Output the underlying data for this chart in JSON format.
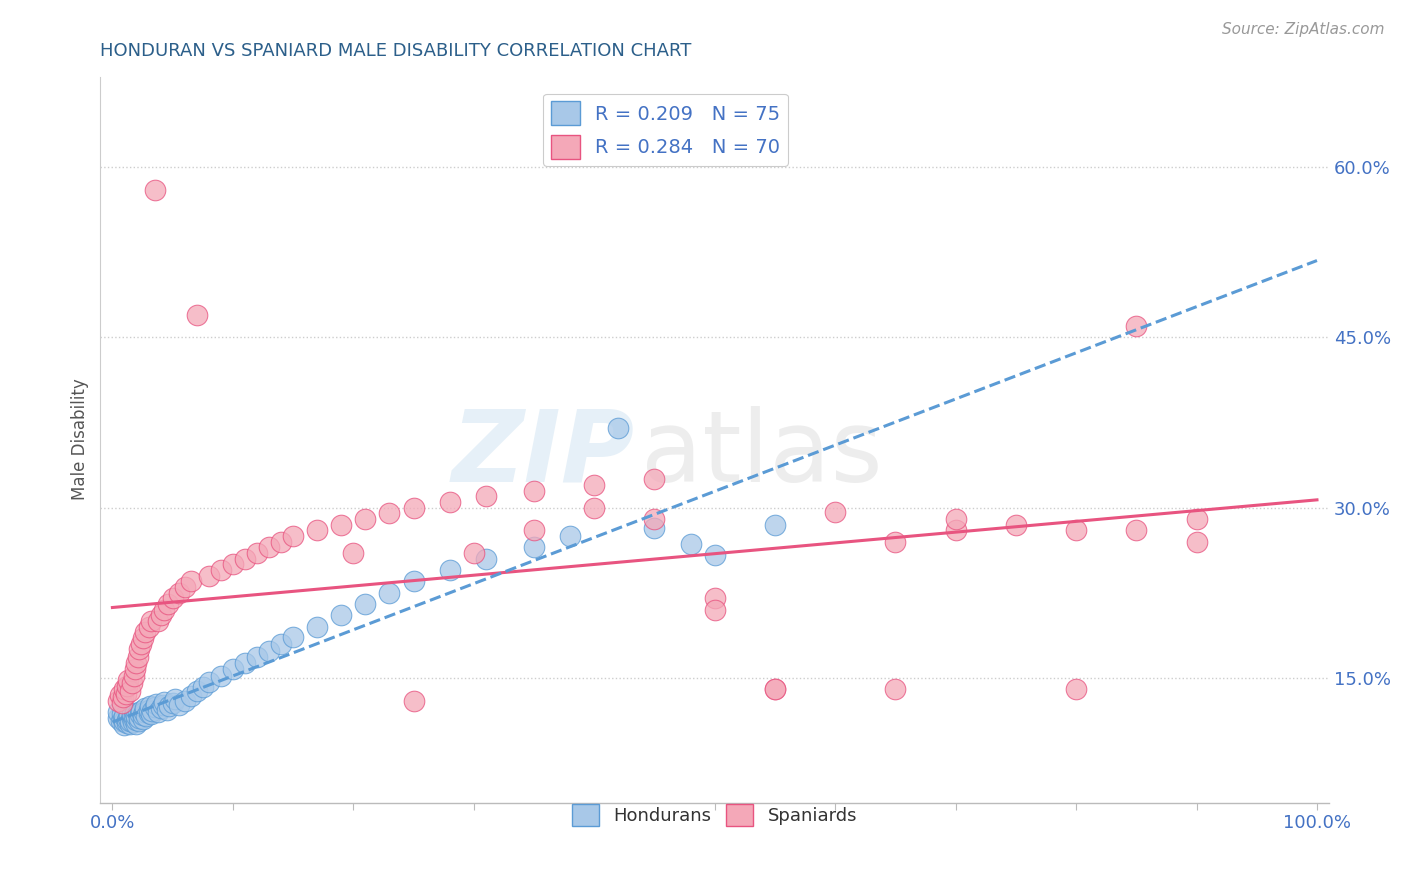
{
  "title": "HONDURAN VS SPANIARD MALE DISABILITY CORRELATION CHART",
  "source": "Source: ZipAtlas.com",
  "ylabel": "Male Disability",
  "xlim": [
    -0.01,
    1.01
  ],
  "ylim": [
    0.04,
    0.68
  ],
  "xticks": [
    0.0,
    0.1,
    0.2,
    0.3,
    0.4,
    0.5,
    0.6,
    0.7,
    0.8,
    0.9,
    1.0
  ],
  "yticks": [
    0.15,
    0.3,
    0.45,
    0.6
  ],
  "ytick_labels": [
    "15.0%",
    "30.0%",
    "45.0%",
    "60.0%"
  ],
  "xtick_labels": [
    "0.0%",
    "",
    "",
    "",
    "",
    "",
    "",
    "",
    "",
    "",
    "100.0%"
  ],
  "honduran_color": "#a8c8e8",
  "spaniard_color": "#f4a8b8",
  "honduran_line_color": "#5b9bd5",
  "spaniard_line_color": "#e85480",
  "R_honduran": 0.209,
  "N_honduran": 75,
  "R_spaniard": 0.284,
  "N_spaniard": 70,
  "legend_label_honduran": "Hondurans",
  "legend_label_spaniard": "Spaniards",
  "watermark_zip": "ZIP",
  "watermark_atlas": "atlas",
  "background_color": "#ffffff",
  "grid_color": "#c8c8c8",
  "title_color": "#2c5f8a",
  "tick_color": "#4472c4",
  "honduran_x": [
    0.005,
    0.005,
    0.007,
    0.008,
    0.009,
    0.01,
    0.01,
    0.01,
    0.012,
    0.012,
    0.013,
    0.014,
    0.015,
    0.015,
    0.016,
    0.016,
    0.017,
    0.018,
    0.018,
    0.019,
    0.02,
    0.02,
    0.02,
    0.021,
    0.022,
    0.022,
    0.023,
    0.024,
    0.025,
    0.025,
    0.026,
    0.027,
    0.028,
    0.03,
    0.03,
    0.031,
    0.032,
    0.033,
    0.035,
    0.036,
    0.038,
    0.04,
    0.042,
    0.043,
    0.045,
    0.047,
    0.05,
    0.052,
    0.055,
    0.06,
    0.065,
    0.07,
    0.075,
    0.08,
    0.09,
    0.1,
    0.11,
    0.12,
    0.13,
    0.14,
    0.15,
    0.17,
    0.19,
    0.21,
    0.23,
    0.25,
    0.28,
    0.31,
    0.35,
    0.38,
    0.42,
    0.45,
    0.48,
    0.5,
    0.55
  ],
  "honduran_y": [
    0.115,
    0.12,
    0.112,
    0.118,
    0.114,
    0.108,
    0.112,
    0.116,
    0.11,
    0.113,
    0.115,
    0.117,
    0.109,
    0.112,
    0.115,
    0.118,
    0.111,
    0.114,
    0.116,
    0.119,
    0.109,
    0.113,
    0.116,
    0.119,
    0.112,
    0.115,
    0.118,
    0.121,
    0.114,
    0.117,
    0.12,
    0.123,
    0.116,
    0.119,
    0.122,
    0.125,
    0.118,
    0.121,
    0.124,
    0.127,
    0.12,
    0.123,
    0.126,
    0.129,
    0.122,
    0.125,
    0.128,
    0.131,
    0.126,
    0.13,
    0.134,
    0.138,
    0.142,
    0.146,
    0.152,
    0.158,
    0.163,
    0.168,
    0.174,
    0.18,
    0.186,
    0.195,
    0.205,
    0.215,
    0.225,
    0.235,
    0.245,
    0.255,
    0.265,
    0.275,
    0.37,
    0.282,
    0.268,
    0.258,
    0.285
  ],
  "spaniard_x": [
    0.005,
    0.006,
    0.008,
    0.009,
    0.01,
    0.011,
    0.012,
    0.013,
    0.015,
    0.016,
    0.018,
    0.019,
    0.02,
    0.021,
    0.022,
    0.024,
    0.025,
    0.027,
    0.03,
    0.032,
    0.035,
    0.038,
    0.04,
    0.043,
    0.046,
    0.05,
    0.055,
    0.06,
    0.065,
    0.07,
    0.08,
    0.09,
    0.1,
    0.11,
    0.12,
    0.13,
    0.14,
    0.15,
    0.17,
    0.19,
    0.21,
    0.23,
    0.25,
    0.28,
    0.31,
    0.35,
    0.4,
    0.45,
    0.5,
    0.55,
    0.6,
    0.65,
    0.7,
    0.75,
    0.8,
    0.85,
    0.9,
    0.2,
    0.25,
    0.3,
    0.35,
    0.4,
    0.45,
    0.5,
    0.55,
    0.65,
    0.7,
    0.8,
    0.85,
    0.9
  ],
  "spaniard_y": [
    0.13,
    0.135,
    0.128,
    0.133,
    0.14,
    0.136,
    0.143,
    0.148,
    0.138,
    0.145,
    0.152,
    0.158,
    0.163,
    0.168,
    0.175,
    0.18,
    0.185,
    0.19,
    0.195,
    0.2,
    0.58,
    0.2,
    0.205,
    0.21,
    0.215,
    0.22,
    0.225,
    0.23,
    0.235,
    0.47,
    0.24,
    0.245,
    0.25,
    0.255,
    0.26,
    0.265,
    0.27,
    0.275,
    0.28,
    0.285,
    0.29,
    0.295,
    0.3,
    0.305,
    0.31,
    0.315,
    0.32,
    0.325,
    0.22,
    0.14,
    0.296,
    0.27,
    0.28,
    0.285,
    0.28,
    0.28,
    0.29,
    0.26,
    0.13,
    0.26,
    0.28,
    0.3,
    0.29,
    0.21,
    0.14,
    0.14,
    0.29,
    0.14,
    0.46,
    0.27
  ]
}
